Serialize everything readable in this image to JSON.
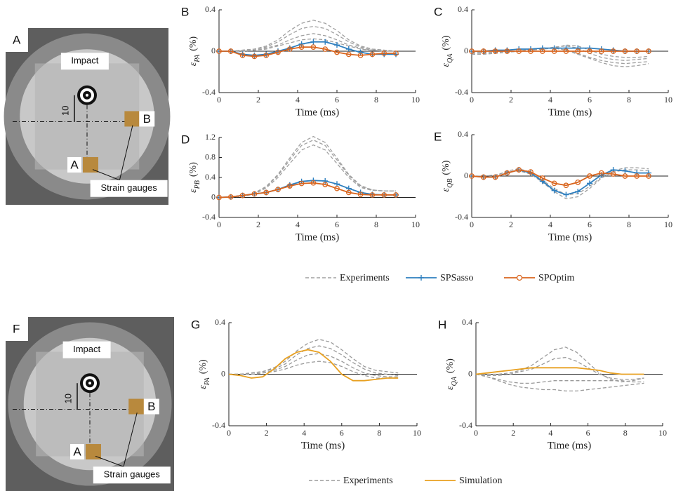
{
  "chart_data": [
    {
      "type": "line",
      "panel": "B",
      "xlabel": "Time (ms)",
      "ylabel": {
        "symbol": "ε",
        "subscript": "PA",
        "unit": "(%)"
      },
      "xlim": [
        0,
        10
      ],
      "xticks": [
        0,
        2,
        4,
        6,
        8,
        10
      ],
      "ylim": [
        -0.4,
        0.4
      ],
      "yticks": [
        -0.4,
        0,
        0.4
      ],
      "x": [
        0,
        0.6,
        1.2,
        1.8,
        2.4,
        3.0,
        3.6,
        4.2,
        4.8,
        5.4,
        6.0,
        6.6,
        7.2,
        7.8,
        8.4,
        9.0
      ],
      "series": [
        {
          "color": "#a0a0a0",
          "dash": true,
          "values": [
            0,
            0,
            0.01,
            0.02,
            0.05,
            0.11,
            0.2,
            0.27,
            0.3,
            0.27,
            0.2,
            0.11,
            0.05,
            0.02,
            0.01,
            0
          ]
        },
        {
          "color": "#a0a0a0",
          "dash": true,
          "values": [
            0,
            0,
            0.01,
            0.02,
            0.04,
            0.09,
            0.16,
            0.22,
            0.24,
            0.22,
            0.16,
            0.09,
            0.04,
            0.02,
            0.01,
            0
          ]
        },
        {
          "color": "#a0a0a0",
          "dash": true,
          "values": [
            0,
            0,
            0,
            0.01,
            0.03,
            0.06,
            0.11,
            0.15,
            0.17,
            0.15,
            0.11,
            0.06,
            0.03,
            0.01,
            0,
            0
          ]
        },
        {
          "color": "#a0a0a0",
          "dash": true,
          "values": [
            0,
            0,
            0,
            0.01,
            0.02,
            0.05,
            0.08,
            0.11,
            0.12,
            0.11,
            0.08,
            0.05,
            0.02,
            0.01,
            0,
            0
          ]
        },
        {
          "color": "#2e7fbf",
          "marker": "plus",
          "values": [
            0,
            0,
            -0.03,
            -0.04,
            -0.03,
            0,
            0.03,
            0.07,
            0.09,
            0.09,
            0.06,
            0.02,
            -0.01,
            -0.03,
            -0.03,
            -0.03
          ]
        },
        {
          "color": "#d9651e",
          "marker": "circle",
          "values": [
            0,
            0,
            -0.04,
            -0.05,
            -0.04,
            -0.01,
            0.02,
            0.04,
            0.04,
            0.02,
            -0.01,
            -0.03,
            -0.04,
            -0.03,
            -0.02,
            -0.02
          ]
        }
      ]
    },
    {
      "type": "line",
      "panel": "C",
      "xlabel": "Time (ms)",
      "ylabel": {
        "symbol": "ε",
        "subscript": "QA",
        "unit": "(%)"
      },
      "xlim": [
        0,
        10
      ],
      "xticks": [
        0,
        2,
        4,
        6,
        8,
        10
      ],
      "ylim": [
        -0.4,
        0.4
      ],
      "yticks": [
        -0.4,
        0,
        0.4
      ],
      "x": [
        0,
        0.6,
        1.2,
        1.8,
        2.4,
        3.0,
        3.6,
        4.2,
        4.8,
        5.4,
        6.0,
        6.6,
        7.2,
        7.8,
        8.4,
        9.0
      ],
      "series": [
        {
          "color": "#a0a0a0",
          "dash": true,
          "values": [
            -0.03,
            -0.03,
            -0.02,
            -0.01,
            0,
            0.02,
            0.03,
            0.03,
            0.01,
            -0.03,
            -0.07,
            -0.11,
            -0.14,
            -0.15,
            -0.14,
            -0.12
          ]
        },
        {
          "color": "#a0a0a0",
          "dash": true,
          "values": [
            -0.02,
            -0.02,
            -0.02,
            -0.01,
            0,
            0.02,
            0.03,
            0.03,
            0.01,
            -0.02,
            -0.06,
            -0.09,
            -0.11,
            -0.12,
            -0.11,
            -0.1
          ]
        },
        {
          "color": "#a0a0a0",
          "dash": true,
          "values": [
            -0.01,
            -0.01,
            -0.01,
            0,
            0,
            0.01,
            0.02,
            0.04,
            0.05,
            0.03,
            -0.02,
            -0.06,
            -0.08,
            -0.09,
            -0.08,
            -0.07
          ]
        },
        {
          "color": "#a0a0a0",
          "dash": true,
          "values": [
            0,
            0,
            0,
            0,
            0,
            0.01,
            0.02,
            0.03,
            0.06,
            0.05,
            0.01,
            -0.03,
            -0.05,
            -0.06,
            -0.06,
            -0.05
          ]
        },
        {
          "color": "#2e7fbf",
          "marker": "plus",
          "values": [
            0,
            0,
            0.01,
            0.01,
            0.02,
            0.02,
            0.03,
            0.03,
            0.03,
            0.03,
            0.03,
            0.02,
            0.01,
            0,
            0,
            0
          ]
        },
        {
          "color": "#d9651e",
          "marker": "circle",
          "values": [
            0,
            0,
            0,
            0,
            0,
            0,
            0,
            0,
            0,
            0,
            0,
            0,
            0,
            0,
            0,
            0
          ]
        }
      ]
    },
    {
      "type": "line",
      "panel": "D",
      "xlabel": "Time (ms)",
      "ylabel": {
        "symbol": "ε",
        "subscript": "PB",
        "unit": "(%)"
      },
      "xlim": [
        0,
        10
      ],
      "xticks": [
        0,
        2,
        4,
        6,
        8,
        10
      ],
      "ylim": [
        -0.4,
        1.2
      ],
      "yticks": [
        -0.4,
        0,
        0.4,
        0.8,
        1.2
      ],
      "x": [
        0,
        0.6,
        1.2,
        1.8,
        2.4,
        3.0,
        3.6,
        4.2,
        4.8,
        5.4,
        6.0,
        6.6,
        7.2,
        7.8,
        8.4,
        9.0
      ],
      "series": [
        {
          "color": "#a0a0a0",
          "dash": true,
          "values": [
            0,
            0.01,
            0.03,
            0.09,
            0.22,
            0.46,
            0.79,
            1.1,
            1.22,
            1.1,
            0.79,
            0.46,
            0.24,
            0.15,
            0.13,
            0.13
          ]
        },
        {
          "color": "#a0a0a0",
          "dash": true,
          "values": [
            0,
            0.01,
            0.03,
            0.08,
            0.21,
            0.44,
            0.75,
            1.04,
            1.15,
            1.04,
            0.75,
            0.44,
            0.22,
            0.15,
            0.13,
            0.13
          ]
        },
        {
          "color": "#a0a0a0",
          "dash": true,
          "values": [
            0,
            0.01,
            0.02,
            0.07,
            0.19,
            0.4,
            0.68,
            0.95,
            1.05,
            0.95,
            0.68,
            0.4,
            0.2,
            0.14,
            0.13,
            0.13
          ]
        },
        {
          "color": "#2e7fbf",
          "marker": "plus",
          "values": [
            0,
            0.01,
            0.04,
            0.07,
            0.1,
            0.16,
            0.25,
            0.32,
            0.34,
            0.33,
            0.27,
            0.18,
            0.1,
            0.06,
            0.05,
            0.05
          ]
        },
        {
          "color": "#d9651e",
          "marker": "circle",
          "values": [
            0,
            0.01,
            0.04,
            0.07,
            0.1,
            0.16,
            0.23,
            0.28,
            0.29,
            0.26,
            0.18,
            0.1,
            0.06,
            0.05,
            0.05,
            0.05
          ]
        }
      ]
    },
    {
      "type": "line",
      "panel": "E",
      "xlabel": "Time (ms)",
      "ylabel": {
        "symbol": "ε",
        "subscript": "QB",
        "unit": "(%)"
      },
      "xlim": [
        0,
        10
      ],
      "xticks": [
        0,
        2,
        4,
        6,
        8,
        10
      ],
      "ylim": [
        -0.4,
        0.4
      ],
      "yticks": [
        -0.4,
        0,
        0.4
      ],
      "x": [
        0,
        0.6,
        1.2,
        1.8,
        2.4,
        3.0,
        3.6,
        4.2,
        4.8,
        5.4,
        6.0,
        6.6,
        7.2,
        7.8,
        8.4,
        9.0
      ],
      "series": [
        {
          "color": "#a0a0a0",
          "dash": true,
          "values": [
            0,
            -0.01,
            0,
            0.05,
            0.07,
            0.04,
            -0.04,
            -0.12,
            -0.18,
            -0.17,
            -0.1,
            -0.01,
            0.05,
            0.08,
            0.08,
            0.07
          ]
        },
        {
          "color": "#a0a0a0",
          "dash": true,
          "values": [
            0,
            0,
            0.01,
            0.04,
            0.05,
            0.02,
            -0.06,
            -0.15,
            -0.22,
            -0.2,
            -0.12,
            -0.02,
            0.04,
            0.06,
            0.06,
            0.05
          ]
        },
        {
          "color": "#2e7fbf",
          "marker": "plus",
          "values": [
            0,
            -0.01,
            -0.01,
            0.03,
            0.06,
            0.03,
            -0.05,
            -0.14,
            -0.18,
            -0.15,
            -0.07,
            0.01,
            0.06,
            0.05,
            0.03,
            0.03
          ]
        },
        {
          "color": "#d9651e",
          "marker": "circle",
          "values": [
            0,
            -0.01,
            -0.01,
            0.03,
            0.06,
            0.04,
            -0.02,
            -0.07,
            -0.09,
            -0.06,
            0,
            0.03,
            0.02,
            0,
            0,
            0
          ]
        }
      ]
    },
    {
      "type": "line",
      "panel": "G",
      "xlabel": "Time (ms)",
      "ylabel": {
        "symbol": "ε",
        "subscript": "PA",
        "unit": "(%)"
      },
      "xlim": [
        0,
        10
      ],
      "xticks": [
        0,
        2,
        4,
        6,
        8,
        10
      ],
      "ylim": [
        -0.4,
        0.4
      ],
      "yticks": [
        -0.4,
        0,
        0.4
      ],
      "x": [
        0,
        0.6,
        1.2,
        1.8,
        2.4,
        3.0,
        3.6,
        4.2,
        4.8,
        5.4,
        6.0,
        6.6,
        7.2,
        7.8,
        8.4,
        9.0
      ],
      "series": [
        {
          "color": "#9a9a9a",
          "dash": true,
          "values": [
            0,
            0,
            0.01,
            0.02,
            0.05,
            0.1,
            0.18,
            0.24,
            0.27,
            0.25,
            0.19,
            0.12,
            0.06,
            0.03,
            0.02,
            0.01
          ]
        },
        {
          "color": "#9a9a9a",
          "dash": true,
          "values": [
            0,
            0,
            0.01,
            0.02,
            0.04,
            0.08,
            0.15,
            0.2,
            0.22,
            0.2,
            0.15,
            0.09,
            0.04,
            0.01,
            0,
            -0.01
          ]
        },
        {
          "color": "#9a9a9a",
          "dash": true,
          "values": [
            0,
            0,
            0,
            0.01,
            0.03,
            0.06,
            0.11,
            0.15,
            0.16,
            0.14,
            0.1,
            0.05,
            0.01,
            -0.01,
            -0.02,
            -0.02
          ]
        },
        {
          "color": "#9a9a9a",
          "dash": true,
          "values": [
            0,
            0,
            0,
            0.01,
            0.02,
            0.04,
            0.07,
            0.09,
            0.1,
            0.09,
            0.06,
            0.02,
            -0.01,
            -0.03,
            -0.03,
            -0.03
          ]
        },
        {
          "color": "#e8a020",
          "values": [
            0,
            -0.01,
            -0.03,
            -0.02,
            0.04,
            0.12,
            0.17,
            0.19,
            0.17,
            0.1,
            0,
            -0.05,
            -0.05,
            -0.04,
            -0.03,
            -0.03
          ]
        }
      ]
    },
    {
      "type": "line",
      "panel": "H",
      "xlabel": "Time (ms)",
      "ylabel": {
        "symbol": "ε",
        "subscript": "QA",
        "unit": "(%)"
      },
      "xlim": [
        0,
        10
      ],
      "xticks": [
        0,
        2,
        4,
        6,
        8,
        10
      ],
      "ylim": [
        -0.4,
        0.4
      ],
      "yticks": [
        -0.4,
        0,
        0.4
      ],
      "x": [
        0,
        0.6,
        1.2,
        1.8,
        2.4,
        3.0,
        3.6,
        4.2,
        4.8,
        5.4,
        6.0,
        6.6,
        7.2,
        7.8,
        8.4,
        9.0
      ],
      "series": [
        {
          "color": "#9a9a9a",
          "dash": true,
          "values": [
            0,
            0,
            0,
            0.01,
            0.03,
            0.07,
            0.13,
            0.19,
            0.21,
            0.17,
            0.09,
            0.01,
            -0.04,
            -0.06,
            -0.05,
            -0.03
          ]
        },
        {
          "color": "#9a9a9a",
          "dash": true,
          "values": [
            0,
            -0.01,
            -0.01,
            0,
            0.02,
            0.04,
            0.08,
            0.12,
            0.13,
            0.1,
            0.05,
            0,
            -0.03,
            -0.04,
            -0.04,
            -0.03
          ]
        },
        {
          "color": "#9a9a9a",
          "dash": true,
          "values": [
            0,
            -0.02,
            -0.04,
            -0.06,
            -0.07,
            -0.07,
            -0.06,
            -0.05,
            -0.05,
            -0.05,
            -0.05,
            -0.05,
            -0.05,
            -0.05,
            -0.06,
            -0.06
          ]
        },
        {
          "color": "#9a9a9a",
          "dash": true,
          "values": [
            0,
            -0.02,
            -0.05,
            -0.08,
            -0.1,
            -0.11,
            -0.12,
            -0.12,
            -0.13,
            -0.13,
            -0.12,
            -0.11,
            -0.1,
            -0.09,
            -0.08,
            -0.07
          ]
        },
        {
          "color": "#e8a020",
          "values": [
            0,
            0.01,
            0.02,
            0.03,
            0.04,
            0.05,
            0.05,
            0.05,
            0.05,
            0.05,
            0.04,
            0.03,
            0.01,
            0,
            0,
            0
          ]
        }
      ]
    }
  ],
  "legends": [
    [
      {
        "name": "Experiments",
        "color": "#a0a0a0",
        "dash": true
      },
      {
        "name": "SPSasso",
        "color": "#2e7fbf",
        "marker": "plus"
      },
      {
        "name": "SPOptim",
        "color": "#d9651e",
        "marker": "circle"
      }
    ],
    [
      {
        "name": "Experiments",
        "color": "#9a9a9a",
        "dash": true
      },
      {
        "name": "Simulation",
        "color": "#e8a020"
      }
    ]
  ],
  "photos": [
    {
      "panel": "A",
      "impact": "Impact",
      "dimension": "10",
      "gauge_b": "B",
      "gauge_a": "A",
      "gauges": "Strain gauges"
    },
    {
      "panel": "F",
      "impact": "Impact",
      "dimension": "10",
      "gauge_b": "B",
      "gauge_a": "A",
      "gauges": "Strain gauges"
    }
  ]
}
